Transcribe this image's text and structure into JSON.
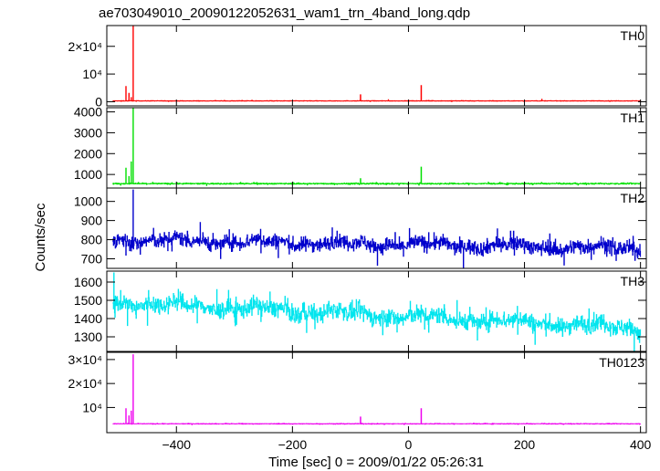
{
  "chart_data": {
    "type": "line",
    "title": "ae703049010_20090122052631_wam1_trn_4band_long.qdp",
    "ylabel": "Counts/sec",
    "xlabel": "Time [sec] 0 = 2009/01/22 05:26:31",
    "xlim": [
      -520,
      410
    ],
    "xticks": [
      -400,
      -200,
      0,
      200,
      400
    ],
    "xtick_labels": [
      "−400",
      "−200",
      "0",
      "200",
      "400"
    ],
    "panels": [
      {
        "name": "TH0",
        "color": "#ff0000",
        "ylim": [
          -1500,
          27500
        ],
        "yticks": [
          0,
          10000,
          20000
        ],
        "ytick_labels": [
          "0",
          "10⁴",
          "2×10⁴"
        ],
        "baseline": 300,
        "noise": 60,
        "wander": 0,
        "trend": 0,
        "spikes": [
          {
            "x": -475,
            "y": 27500
          },
          {
            "x": -487,
            "y": 5500
          },
          {
            "x": -482,
            "y": 3000
          },
          {
            "x": -478,
            "y": 1500
          },
          {
            "x": -83,
            "y": 2500
          },
          {
            "x": -35,
            "y": 700
          },
          {
            "x": 22,
            "y": 5800
          },
          {
            "x": 230,
            "y": 900
          }
        ]
      },
      {
        "name": "TH1",
        "color": "#00e000",
        "ylim": [
          350,
          4200
        ],
        "yticks": [
          1000,
          2000,
          3000,
          4000
        ],
        "ytick_labels": [
          "1000",
          "2000",
          "3000",
          "4000"
        ],
        "baseline": 560,
        "noise": 22,
        "wander": 0,
        "trend": 0,
        "spikes": [
          {
            "x": -475,
            "y": 4200
          },
          {
            "x": -487,
            "y": 1300
          },
          {
            "x": -482,
            "y": 900
          },
          {
            "x": -478,
            "y": 1600
          },
          {
            "x": -83,
            "y": 800
          },
          {
            "x": 22,
            "y": 1350
          }
        ]
      },
      {
        "name": "TH2",
        "color": "#0000cc",
        "ylim": [
          650,
          1070
        ],
        "yticks": [
          700,
          800,
          900,
          1000
        ],
        "ytick_labels": [
          "700",
          "800",
          "900",
          "1000"
        ],
        "baseline": 800,
        "noise": 28,
        "wander": 12,
        "trend": -45,
        "spikes": [
          {
            "x": -475,
            "y": 1060
          }
        ]
      },
      {
        "name": "TH3",
        "color": "#00e5ee",
        "ylim": [
          1220,
          1660
        ],
        "yticks": [
          1300,
          1400,
          1500,
          1600
        ],
        "ytick_labels": [
          "1300",
          "1400",
          "1500",
          "1600"
        ],
        "baseline": 1490,
        "noise": 35,
        "wander": 15,
        "trend": -140,
        "spikes": [
          {
            "x": -508,
            "y": 1650
          }
        ]
      },
      {
        "name": "TH0123",
        "color": "#ee00ee",
        "ylim": [
          -500,
          33000
        ],
        "yticks": [
          10000,
          20000,
          30000
        ],
        "ytick_labels": [
          "10⁴",
          "2×10⁴",
          "3×10⁴"
        ],
        "baseline": 3200,
        "noise": 90,
        "wander": 0,
        "trend": 0,
        "spikes": [
          {
            "x": -475,
            "y": 32000
          },
          {
            "x": -487,
            "y": 9500
          },
          {
            "x": -482,
            "y": 6500
          },
          {
            "x": -478,
            "y": 8500
          },
          {
            "x": -83,
            "y": 6000
          },
          {
            "x": 22,
            "y": 9500
          }
        ]
      }
    ]
  }
}
